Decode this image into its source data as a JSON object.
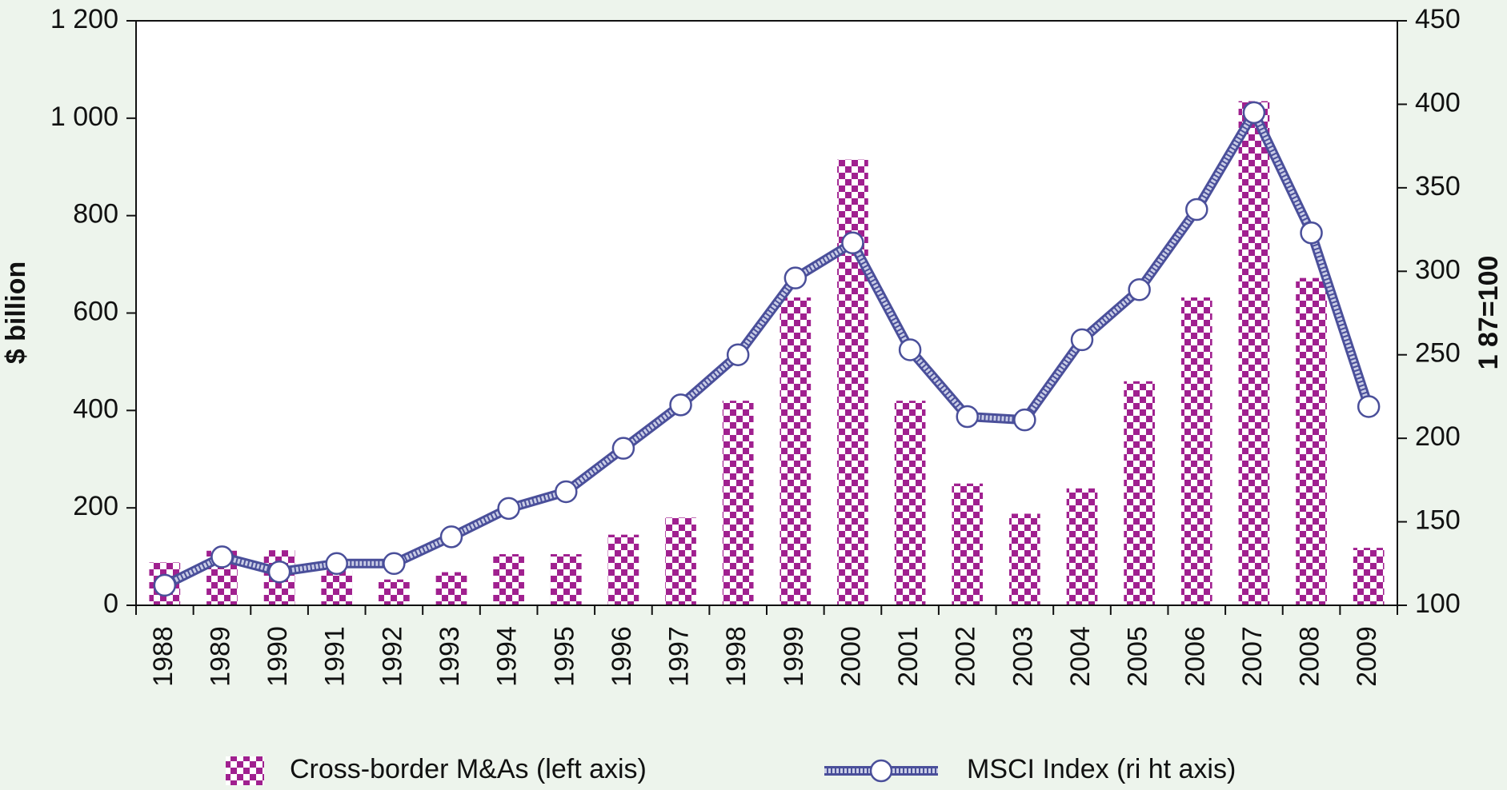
{
  "chart_data": {
    "type": "bar_line",
    "y_label": "$ billion",
    "y2_label": "1 87=100",
    "categories": [
      "1988",
      "1989",
      "1990",
      "1991",
      "1992",
      "1993",
      "1994",
      "1995",
      "1996",
      "1997",
      "1998",
      "1999",
      "2000",
      "2001",
      "2002",
      "2003",
      "2004",
      "2005",
      "2006",
      "2007",
      "2008",
      "2009"
    ],
    "series": [
      {
        "name": "Cross-border M&As (left axis)",
        "color": "#a0208f",
        "type": "bar",
        "values": [
          88,
          112,
          113,
          72,
          53,
          68,
          105,
          105,
          145,
          180,
          420,
          632,
          915,
          420,
          250,
          188,
          240,
          460,
          632,
          1035,
          672,
          118
        ]
      },
      {
        "name": "MSCI Index (ri ht axis)",
        "color": "#4a4f9a",
        "type": "line",
        "axis": "y2",
        "values": [
          112,
          129,
          120,
          125,
          125,
          141,
          158,
          168,
          194,
          220,
          250,
          296,
          317,
          253,
          213,
          211,
          259,
          289,
          337,
          395,
          323,
          219
        ]
      }
    ],
    "ylim": [
      0,
      1200
    ],
    "yticks": [
      0,
      200,
      400,
      600,
      800,
      {
        "value": 1000,
        "label": "1 000"
      },
      {
        "value": 1200,
        "label": "1 200"
      }
    ],
    "y2lim": [
      100,
      450
    ],
    "y2ticks": [
      100,
      150,
      200,
      250,
      300,
      350,
      400,
      450
    ]
  }
}
